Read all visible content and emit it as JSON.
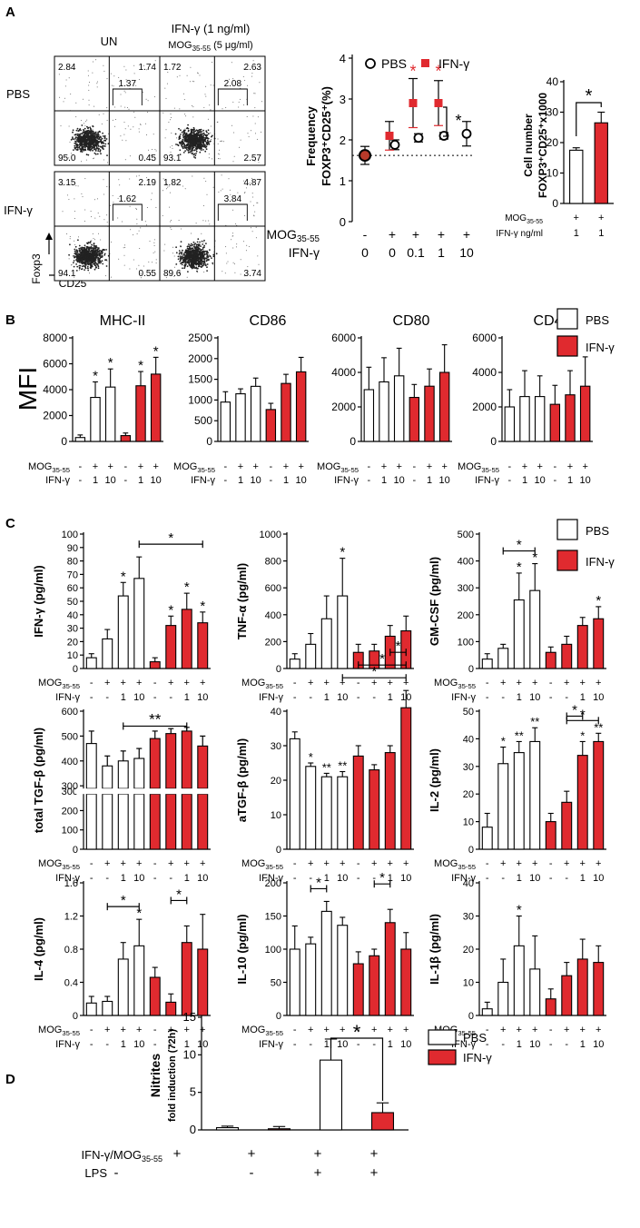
{
  "colors": {
    "pbs": "#ffffff",
    "ifn": "#e02a2f",
    "stroke": "#000000",
    "flow_dots": "#222222"
  },
  "panels": {
    "A": "A",
    "B": "B",
    "C": "C",
    "D": "D"
  },
  "flow": {
    "col_un": "UN",
    "col_ifn_line1": "IFN-γ (1 ng/ml)",
    "col_ifn_line2_pre": "MOG",
    "col_ifn_line2_sub": "35-55",
    "col_ifn_line2_post": " (5 μg/ml)",
    "row_pbs": "PBS",
    "row_ifn": "IFN-γ",
    "ylabel": "Foxp3",
    "xlabel": "CD25",
    "plots": [
      {
        "tl": "2.84",
        "tr": "1.74",
        "gate": "1.37",
        "bl": "95.0",
        "br": "0.45"
      },
      {
        "tl": "1.72",
        "tr": "2.63",
        "gate": "2.08",
        "bl": "93.1",
        "br": "2.57"
      },
      {
        "tl": "3.15",
        "tr": "2.19",
        "gate": "1.62",
        "bl": "94.1",
        "br": "0.55"
      },
      {
        "tl": "1.82",
        "tr": "4.87",
        "gate": "3.84",
        "bl": "89.6",
        "br": "3.74"
      }
    ]
  },
  "chart_data": [
    {
      "id": "A-freq",
      "type": "scatter",
      "ylabel": "Frequency FOXP3+CD25+(%)",
      "ylim": [
        0,
        4
      ],
      "yticks": [
        0,
        1,
        2,
        3,
        4
      ],
      "legend": [
        "PBS",
        "IFN-γ"
      ],
      "conditions": {
        "mog": [
          "-",
          "+",
          "+",
          "+",
          "+"
        ],
        "ifn": [
          "0",
          "0",
          "0.1",
          "1",
          "10"
        ]
      },
      "points": [
        {
          "group": "baseline",
          "x": 0,
          "y": 1.62,
          "err": 0.22
        },
        {
          "group": "PBS",
          "x": 1,
          "y": 1.88,
          "err": 0.12
        },
        {
          "group": "IFN-γ",
          "x": 1,
          "y": 2.1,
          "err": 0.35
        },
        {
          "group": "PBS",
          "x": 2,
          "y": 2.05,
          "err": 0.1
        },
        {
          "group": "IFN-γ",
          "x": 2,
          "y": 2.9,
          "err": 0.6
        },
        {
          "group": "PBS",
          "x": 3,
          "y": 2.1,
          "err": 0.08
        },
        {
          "group": "IFN-γ",
          "x": 3,
          "y": 2.9,
          "err": 0.55
        },
        {
          "group": "PBS",
          "x": 4,
          "y": 2.15,
          "err": 0.3
        }
      ],
      "baseline": 1.62,
      "stars": [
        {
          "x": 2,
          "label": "*"
        },
        {
          "x": 3,
          "label": "*"
        }
      ],
      "bracket": {
        "x": 3,
        "label": "*"
      }
    },
    {
      "id": "A-count",
      "type": "bar",
      "ylabel": "Cell number FOXP3+CD25+x1000",
      "ylim": [
        0,
        40
      ],
      "yticks": [
        0,
        10,
        20,
        30,
        40
      ],
      "values": [
        17.5,
        26.5
      ],
      "errors": [
        0.8,
        3.5
      ],
      "groups": [
        "PBS",
        "IFN-γ"
      ],
      "cond_mog": [
        "+",
        "+"
      ],
      "cond_ifn": [
        "1",
        "1"
      ],
      "sig": "*"
    },
    {
      "id": "B-MHCII",
      "type": "bar",
      "title": "MHC-II",
      "ylim": [
        0,
        8000
      ],
      "yticks": [
        0,
        2000,
        4000,
        6000,
        8000
      ],
      "values": [
        300,
        3400,
        4200,
        450,
        4300,
        5200
      ],
      "errors": [
        200,
        1200,
        1400,
        200,
        1100,
        1300
      ],
      "stars": [
        1,
        2,
        4,
        5
      ]
    },
    {
      "id": "B-CD86",
      "type": "bar",
      "title": "CD86",
      "ylim": [
        0,
        2500
      ],
      "yticks": [
        0,
        500,
        1000,
        1500,
        2000,
        2500
      ],
      "values": [
        950,
        1150,
        1330,
        770,
        1400,
        1680
      ],
      "errors": [
        250,
        120,
        200,
        150,
        220,
        350
      ],
      "stars": []
    },
    {
      "id": "B-CD80",
      "type": "bar",
      "title": "CD80",
      "ylim": [
        0,
        6000
      ],
      "yticks": [
        0,
        2000,
        4000,
        6000
      ],
      "values": [
        3000,
        3450,
        3800,
        2550,
        3200,
        4000
      ],
      "errors": [
        1300,
        1400,
        1600,
        750,
        1000,
        1600
      ],
      "stars": []
    },
    {
      "id": "B-CD40",
      "type": "bar",
      "title": "CD40",
      "ylim": [
        0,
        6000
      ],
      "yticks": [
        0,
        2000,
        4000,
        6000
      ],
      "values": [
        2000,
        2600,
        2600,
        2150,
        2700,
        3200
      ],
      "errors": [
        1000,
        1500,
        1200,
        1100,
        1400,
        1700
      ],
      "stars": []
    },
    {
      "id": "C-IFNg",
      "type": "bar",
      "ylabel": "IFN-γ (pg/ml)",
      "ylim": [
        0,
        100
      ],
      "yticks": [
        0,
        10,
        20,
        30,
        40,
        50,
        60,
        70,
        80,
        90,
        100
      ],
      "values": [
        8,
        22,
        54,
        67,
        5,
        32,
        44,
        34
      ],
      "errors": [
        3,
        7,
        10,
        16,
        3,
        7,
        12,
        8
      ],
      "stars": [
        2,
        5,
        6,
        7
      ],
      "brackets": [
        {
          "from": 3,
          "to": 7,
          "label": "*"
        }
      ]
    },
    {
      "id": "C-TNFa",
      "type": "bar",
      "ylabel": "TNF-α (pg/ml)",
      "ylim": [
        0,
        1000
      ],
      "yticks": [
        0,
        200,
        400,
        600,
        800,
        1000
      ],
      "values": [
        70,
        180,
        370,
        540,
        120,
        130,
        240,
        280
      ],
      "errors": [
        40,
        80,
        170,
        280,
        60,
        50,
        80,
        110
      ],
      "stars": [
        3
      ],
      "brackets": []
    },
    {
      "id": "C-GMCSF",
      "type": "bar",
      "ylabel": "GM-CSF (pg/ml)",
      "ylim": [
        0,
        500
      ],
      "yticks": [
        0,
        100,
        200,
        300,
        400,
        500
      ],
      "values": [
        35,
        75,
        255,
        290,
        60,
        90,
        160,
        185
      ],
      "errors": [
        20,
        15,
        100,
        100,
        20,
        30,
        30,
        45
      ],
      "stars": [
        2,
        3,
        7
      ],
      "brackets": [
        {
          "from": 1,
          "to": 3,
          "label": "*"
        }
      ]
    },
    {
      "id": "C-TGFb",
      "type": "bar",
      "ylabel": "total TGF-β (pg/ml)",
      "broken_axis": true,
      "ylim_low": [
        0,
        300
      ],
      "yticks_low": [
        0,
        100,
        200,
        300
      ],
      "ylim_high": [
        300,
        600
      ],
      "yticks_high": [
        300,
        400,
        500,
        600
      ],
      "values": [
        470,
        380,
        400,
        410,
        490,
        510,
        520,
        460
      ],
      "errors": [
        50,
        40,
        40,
        40,
        30,
        20,
        15,
        40
      ],
      "stars": [],
      "brackets": [
        {
          "from": 2,
          "to": 6,
          "label": "**"
        }
      ]
    },
    {
      "id": "C-aTGFb",
      "type": "bar",
      "ylabel": "aTGF-β (pg/ml)",
      "ylim": [
        0,
        40
      ],
      "yticks": [
        0,
        10,
        20,
        30,
        40
      ],
      "values": [
        32,
        24,
        21,
        21,
        27,
        23,
        28,
        41
      ],
      "errors": [
        2,
        1,
        1,
        1.5,
        3,
        1.5,
        2,
        5
      ],
      "star_labels": [
        {
          "i": 1,
          "label": "*"
        },
        {
          "i": 2,
          "label": "**"
        },
        {
          "i": 3,
          "label": "**"
        }
      ],
      "brackets": [
        {
          "from": 3,
          "to": 7,
          "label": "*"
        },
        {
          "from": 4,
          "to": 7,
          "label": "*"
        },
        {
          "from": 6,
          "to": 7,
          "label": "*"
        }
      ]
    },
    {
      "id": "C-IL2",
      "type": "bar",
      "ylabel": "IL-2 (pg/ml)",
      "ylim": [
        0,
        50
      ],
      "yticks": [
        0,
        10,
        20,
        30,
        40,
        50
      ],
      "values": [
        8,
        31,
        35,
        39,
        10,
        17,
        34,
        39
      ],
      "errors": [
        5,
        6,
        4,
        5,
        3,
        4,
        5,
        3
      ],
      "star_labels": [
        {
          "i": 1,
          "label": "*"
        },
        {
          "i": 2,
          "label": "**"
        },
        {
          "i": 3,
          "label": "**"
        },
        {
          "i": 6,
          "label": "*"
        },
        {
          "i": 7,
          "label": "**"
        }
      ],
      "brackets": [
        {
          "from": 5,
          "to": 7,
          "label": "*"
        },
        {
          "from": 5,
          "to": 6,
          "label": "*"
        }
      ]
    },
    {
      "id": "C-IL4",
      "type": "bar",
      "ylabel": "IL-4 (pg/ml)",
      "ylim": [
        0,
        1.6
      ],
      "yticks": [
        "0",
        "0.4",
        "0.8",
        "1.2",
        "1.6"
      ],
      "values": [
        0.15,
        0.17,
        0.68,
        0.84,
        0.46,
        0.16,
        0.88,
        0.8
      ],
      "errors": [
        0.08,
        0.06,
        0.2,
        0.32,
        0.12,
        0.1,
        0.2,
        0.42
      ],
      "stars": [
        3
      ],
      "brackets": [
        {
          "from": 1,
          "to": 3,
          "label": "*"
        },
        {
          "from": 5,
          "to": 6,
          "label": "*"
        }
      ]
    },
    {
      "id": "C-IL10",
      "type": "bar",
      "ylabel": "IL-10 (pg/ml)",
      "ylim": [
        0,
        200
      ],
      "yticks": [
        0,
        50,
        100,
        150,
        200
      ],
      "values": [
        100,
        108,
        157,
        136,
        78,
        90,
        140,
        100
      ],
      "errors": [
        35,
        10,
        15,
        12,
        18,
        10,
        20,
        25
      ],
      "stars": [],
      "brackets": [
        {
          "from": 1,
          "to": 2,
          "label": "*"
        },
        {
          "from": 5,
          "to": 6,
          "label": "*"
        }
      ]
    },
    {
      "id": "C-IL1b",
      "type": "bar",
      "ylabel": "IL-1β (pg/ml)",
      "ylim": [
        0,
        40
      ],
      "yticks": [
        0,
        10,
        20,
        30,
        40
      ],
      "values": [
        2,
        10,
        21,
        14,
        5,
        12,
        17,
        16
      ],
      "errors": [
        2,
        7,
        9,
        10,
        3,
        4,
        6,
        5
      ],
      "stars": [
        2
      ],
      "brackets": []
    },
    {
      "id": "D-nitrites",
      "type": "bar",
      "ylabel": "Nitrites fold induction (72h)",
      "ylim": [
        0,
        15
      ],
      "yticks": [
        0,
        5,
        10,
        15
      ],
      "values": [
        0.3,
        0.15,
        9.3,
        2.3
      ],
      "errors": [
        0.2,
        0.3,
        2.8,
        1.3
      ],
      "groups": [
        "PBS",
        "IFN-γ",
        "PBS",
        "IFN-γ"
      ],
      "cond_ifnmog": [
        "+",
        "+",
        "+",
        "+"
      ],
      "cond_lps": [
        "-",
        "-",
        "+",
        "+"
      ],
      "sig": "*",
      "legend": [
        "PBS",
        "IFN-γ"
      ]
    }
  ],
  "labels": {
    "mog": "MOG",
    "mog_sub": "35-55",
    "ifn": "IFN-γ",
    "ifn_ngml": "IFN-γ ng/ml",
    "mfi": "MFI",
    "pbs": "PBS",
    "ifn_mog": "IFN-γ/MOG",
    "lps": "LPS",
    "cond6_mog": [
      "-",
      "+",
      "+",
      "-",
      "+",
      "+"
    ],
    "cond6_ifn": [
      "-",
      "1",
      "10",
      "-",
      "1",
      "10"
    ],
    "cond8_mog": [
      "-",
      "+",
      "+",
      "+",
      "-",
      "+",
      "+",
      "+"
    ],
    "cond8_ifn": [
      "-",
      "-",
      "1",
      "10",
      "-",
      "-",
      "1",
      "10"
    ],
    "A_mog": [
      "-",
      "+",
      "+",
      "+",
      "+"
    ],
    "A_ifn": [
      "0",
      "0",
      "0.1",
      "1",
      "10"
    ],
    "A2_mog": [
      "+",
      "+"
    ],
    "A2_ifn": [
      "1",
      "1"
    ],
    "D_ifnmog": [
      "+",
      "+",
      "+",
      "+"
    ],
    "D_lps": [
      "-",
      "-",
      "+",
      "+"
    ],
    "freq_l1": "Frequency",
    "freq_l2": "FOXP3⁺CD25⁺(%)",
    "cnt_l1": "Cell number",
    "cnt_l2": "FOXP3⁺CD25⁺x1000",
    "nit_l1": "Nitrites",
    "nit_l2": "fold induction (72h)"
  }
}
